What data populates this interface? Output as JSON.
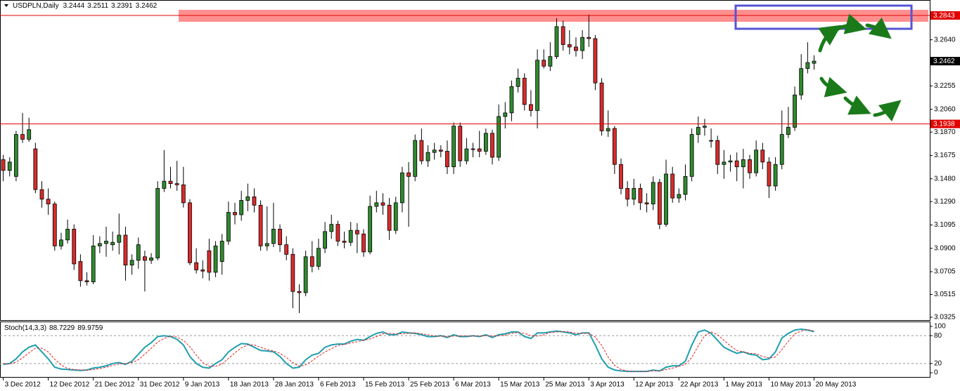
{
  "chart_data": [
    {
      "type": "candlestick",
      "title": "USDPLN,Daily",
      "categories": [
        "3 Dec 2012",
        null,
        null,
        null,
        null,
        null,
        null,
        "12 Dec 2012",
        null,
        null,
        null,
        null,
        null,
        null,
        "21 Dec 2012",
        null,
        null,
        null,
        null,
        null,
        null,
        "31 Dec 2012",
        null,
        null,
        null,
        null,
        null,
        null,
        "9 Jan 2013",
        null,
        null,
        null,
        null,
        null,
        null,
        "18 Jan 2013",
        null,
        null,
        null,
        null,
        null,
        null,
        "28 Jan 2013",
        null,
        null,
        null,
        null,
        null,
        null,
        "6 Feb 2013",
        null,
        null,
        null,
        null,
        null,
        null,
        "15 Feb 2013",
        null,
        null,
        null,
        null,
        null,
        null,
        "25 Feb 2013",
        null,
        null,
        null,
        null,
        null,
        null,
        "6 Mar 2013",
        null,
        null,
        null,
        null,
        null,
        null,
        "15 Mar 2013",
        null,
        null,
        null,
        null,
        null,
        null,
        "25 Mar 2013",
        null,
        null,
        null,
        null,
        null,
        null,
        "3 Apr 2013",
        null,
        null,
        null,
        null,
        null,
        null,
        "12 Apr 2013",
        null,
        null,
        null,
        null,
        null,
        null,
        "22 Apr 2013",
        null,
        null,
        null,
        null,
        null,
        null,
        "1 May 2013",
        null,
        null,
        null,
        null,
        null,
        null,
        "10 May 2013",
        null,
        null,
        null,
        null,
        null,
        null,
        "20 May 2013"
      ],
      "open": [
        3.164,
        3.155,
        3.15,
        3.185,
        3.181,
        3.173,
        3.139,
        3.131,
        3.127,
        3.092,
        3.097,
        3.106,
        3.079,
        3.063,
        3.062,
        3.092,
        3.094,
        3.093,
        3.095,
        3.101,
        3.076,
        3.08,
        3.083,
        3.08,
        3.082,
        3.14,
        3.146,
        3.144,
        3.143,
        3.128,
        3.078,
        3.072,
        3.088,
        3.07,
        3.079,
        3.096,
        3.12,
        3.118,
        3.13,
        3.133,
        3.126,
        3.092,
        3.094,
        3.106,
        3.093,
        3.085,
        3.054,
        3.053,
        3.083,
        3.075,
        3.09,
        3.104,
        3.11,
        3.096,
        3.095,
        3.105,
        3.102,
        3.087,
        3.125,
        3.128,
        3.126,
        3.105,
        3.128,
        3.153,
        3.15,
        3.18,
        3.163,
        3.17,
        3.172,
        3.171,
        3.158,
        3.192,
        3.163,
        3.173,
        3.173,
        3.171,
        3.186,
        3.166,
        3.2,
        3.203,
        3.225,
        3.232,
        3.21,
        3.205,
        3.247,
        3.242,
        3.25,
        3.275,
        3.26,
        3.258,
        3.255,
        3.266,
        3.265,
        3.228,
        3.188,
        3.19,
        3.16,
        3.14,
        3.131,
        3.14,
        3.128,
        3.127,
        3.145,
        3.11,
        3.152,
        3.132,
        3.135,
        3.15,
        3.185,
        3.191,
        3.18,
        3.18,
        3.16,
        3.162,
        3.163,
        3.158,
        3.164,
        3.153,
        3.172,
        3.162,
        3.142,
        3.16,
        3.185,
        3.191,
        3.218,
        3.24,
        3.2444
      ],
      "high": [
        3.168,
        3.166,
        3.188,
        3.203,
        3.199,
        3.178,
        3.146,
        3.14,
        3.129,
        3.103,
        3.114,
        3.11,
        3.085,
        3.07,
        3.101,
        3.1,
        3.108,
        3.104,
        3.119,
        3.108,
        3.085,
        3.099,
        3.088,
        3.086,
        3.146,
        3.172,
        3.158,
        3.163,
        3.158,
        3.131,
        3.09,
        3.08,
        3.098,
        3.096,
        3.102,
        3.129,
        3.128,
        3.138,
        3.144,
        3.14,
        3.13,
        3.125,
        3.128,
        3.11,
        3.1,
        3.09,
        3.06,
        3.088,
        3.096,
        3.098,
        3.112,
        3.118,
        3.113,
        3.104,
        3.112,
        3.111,
        3.106,
        3.134,
        3.138,
        3.136,
        3.132,
        3.133,
        3.158,
        3.162,
        3.185,
        3.19,
        3.176,
        3.178,
        3.176,
        3.18,
        3.195,
        3.195,
        3.182,
        3.178,
        3.188,
        3.19,
        3.189,
        3.21,
        3.212,
        3.23,
        3.24,
        3.236,
        3.222,
        3.256,
        3.256,
        3.262,
        3.282,
        3.28,
        3.272,
        3.266,
        3.272,
        3.285,
        3.268,
        3.232,
        3.205,
        3.192,
        3.165,
        3.146,
        3.148,
        3.144,
        3.136,
        3.15,
        3.148,
        3.164,
        3.158,
        3.14,
        3.16,
        3.19,
        3.2,
        3.198,
        3.19,
        3.184,
        3.172,
        3.168,
        3.17,
        3.173,
        3.168,
        3.18,
        3.178,
        3.166,
        3.166,
        3.205,
        3.208,
        3.225,
        3.252,
        3.262,
        3.2511
      ],
      "low": [
        3.146,
        3.15,
        3.146,
        3.178,
        3.179,
        3.136,
        3.124,
        3.118,
        3.088,
        3.089,
        3.094,
        3.072,
        3.058,
        3.059,
        3.06,
        3.086,
        3.083,
        3.088,
        3.085,
        3.063,
        3.068,
        3.073,
        3.054,
        3.077,
        3.08,
        3.137,
        3.14,
        3.138,
        3.124,
        3.076,
        3.069,
        3.065,
        3.063,
        3.066,
        3.068,
        3.093,
        3.11,
        3.113,
        3.121,
        3.12,
        3.088,
        3.088,
        3.091,
        3.087,
        3.08,
        3.04,
        3.036,
        3.05,
        3.07,
        3.072,
        3.086,
        3.098,
        3.092,
        3.09,
        3.092,
        3.086,
        3.083,
        3.085,
        3.12,
        3.118,
        3.097,
        3.102,
        3.12,
        3.108,
        3.146,
        3.16,
        3.158,
        3.164,
        3.166,
        3.152,
        3.152,
        3.158,
        3.16,
        3.166,
        3.166,
        3.168,
        3.16,
        3.163,
        3.19,
        3.196,
        3.22,
        3.205,
        3.2,
        3.19,
        3.24,
        3.238,
        3.248,
        3.255,
        3.252,
        3.25,
        3.248,
        3.258,
        3.222,
        3.184,
        3.183,
        3.152,
        3.135,
        3.125,
        3.126,
        3.122,
        3.12,
        3.122,
        3.106,
        3.108,
        3.128,
        3.128,
        3.13,
        3.146,
        3.178,
        3.184,
        3.174,
        3.152,
        3.148,
        3.154,
        3.146,
        3.14,
        3.148,
        3.15,
        3.156,
        3.132,
        3.138,
        3.156,
        3.182,
        3.188,
        3.214,
        3.236,
        3.2391
      ],
      "close": [
        3.155,
        3.162,
        3.185,
        3.181,
        3.189,
        3.139,
        3.131,
        3.127,
        3.092,
        3.097,
        3.106,
        3.077,
        3.063,
        3.062,
        3.092,
        3.094,
        3.096,
        3.095,
        3.101,
        3.076,
        3.08,
        3.093,
        3.08,
        3.082,
        3.14,
        3.146,
        3.144,
        3.143,
        3.128,
        3.078,
        3.072,
        3.071,
        3.07,
        3.092,
        3.096,
        3.12,
        3.118,
        3.13,
        3.133,
        3.126,
        3.092,
        3.094,
        3.106,
        3.093,
        3.085,
        3.054,
        3.053,
        3.083,
        3.075,
        3.09,
        3.104,
        3.11,
        3.096,
        3.095,
        3.105,
        3.102,
        3.087,
        3.125,
        3.128,
        3.126,
        3.105,
        3.128,
        3.153,
        3.15,
        3.18,
        3.163,
        3.17,
        3.172,
        3.171,
        3.158,
        3.192,
        3.163,
        3.173,
        3.173,
        3.171,
        3.186,
        3.166,
        3.2,
        3.203,
        3.225,
        3.232,
        3.21,
        3.205,
        3.247,
        3.242,
        3.25,
        3.275,
        3.26,
        3.258,
        3.255,
        3.266,
        3.265,
        3.228,
        3.188,
        3.19,
        3.16,
        3.14,
        3.131,
        3.14,
        3.128,
        3.127,
        3.145,
        3.11,
        3.152,
        3.132,
        3.135,
        3.15,
        3.185,
        3.191,
        3.192,
        3.18,
        3.16,
        3.162,
        3.163,
        3.158,
        3.164,
        3.153,
        3.172,
        3.162,
        3.142,
        3.16,
        3.185,
        3.191,
        3.218,
        3.24,
        3.245,
        3.2462
      ],
      "up_color": "#2f8a2f",
      "down_color": "#d92b2b",
      "ylim": [
        3.0307,
        3.289
      ],
      "yticks": [
        {
          "value": 3.264,
          "label": "3.2640"
        },
        3.2255,
        {
          "value": 3.206,
          "label": "3.2060"
        },
        {
          "value": 3.187,
          "label": "3.1870"
        },
        3.1675,
        {
          "value": 3.148,
          "label": "3.1480"
        },
        {
          "value": 3.129,
          "label": "3.1290"
        },
        3.1095,
        {
          "value": 3.09,
          "label": "3.0900"
        },
        3.0705,
        3.0515,
        3.0325
      ],
      "hlines": [
        3.2843,
        3.1938
      ],
      "hline_color": "#e00000"
    },
    {
      "type": "line",
      "title": "Stoch(14,3,3)",
      "series": [
        {
          "color": "#1f9fb0",
          "values": [
            18,
            20,
            30,
            45,
            55,
            60,
            45,
            30,
            12,
            8,
            7,
            6,
            5,
            6,
            10,
            12,
            15,
            20,
            22,
            18,
            25,
            40,
            55,
            65,
            78,
            80,
            78,
            72,
            60,
            35,
            20,
            12,
            10,
            20,
            28,
            45,
            55,
            63,
            62,
            55,
            48,
            47,
            45,
            35,
            20,
            10,
            12,
            28,
            38,
            42,
            55,
            60,
            62,
            62,
            68,
            72,
            70,
            78,
            85,
            88,
            82,
            82,
            88,
            86,
            85,
            82,
            78,
            78,
            80,
            76,
            82,
            78,
            78,
            80,
            78,
            82,
            76,
            82,
            84,
            88,
            88,
            78,
            74,
            86,
            86,
            88,
            90,
            88,
            86,
            82,
            86,
            86,
            60,
            30,
            12,
            6,
            4,
            3,
            3,
            3,
            3,
            6,
            4,
            12,
            15,
            15,
            25,
            60,
            88,
            92,
            85,
            70,
            55,
            48,
            42,
            45,
            40,
            38,
            28,
            30,
            45,
            75,
            85,
            92,
            94,
            92,
            88.7229
          ]
        },
        {
          "color": "#e02020",
          "dashed": true,
          "values": [
            20,
            19,
            23,
            32,
            43,
            53,
            53,
            45,
            29,
            17,
            9,
            7,
            6,
            6,
            7,
            9,
            12,
            16,
            19,
            20,
            22,
            28,
            40,
            53,
            66,
            74,
            79,
            77,
            70,
            56,
            38,
            22,
            14,
            14,
            19,
            31,
            43,
            54,
            60,
            60,
            55,
            50,
            47,
            42,
            33,
            22,
            14,
            17,
            26,
            36,
            45,
            52,
            59,
            61,
            64,
            67,
            70,
            73,
            78,
            84,
            85,
            84,
            84,
            85,
            86,
            84,
            82,
            79,
            79,
            78,
            79,
            79,
            79,
            79,
            79,
            80,
            79,
            80,
            81,
            85,
            87,
            85,
            80,
            79,
            82,
            87,
            88,
            89,
            88,
            85,
            85,
            85,
            77,
            59,
            34,
            16,
            7,
            4,
            3,
            3,
            3,
            4,
            4,
            7,
            10,
            14,
            18,
            33,
            58,
            80,
            88,
            82,
            70,
            58,
            48,
            45,
            42,
            41,
            35,
            32,
            34,
            50,
            68,
            84,
            90,
            93,
            89.9759
          ]
        }
      ],
      "ylim": [
        -7.5,
        107.5
      ],
      "yticks": [
        0,
        20,
        80,
        100
      ],
      "levels": [
        20,
        80
      ]
    }
  ]
}
